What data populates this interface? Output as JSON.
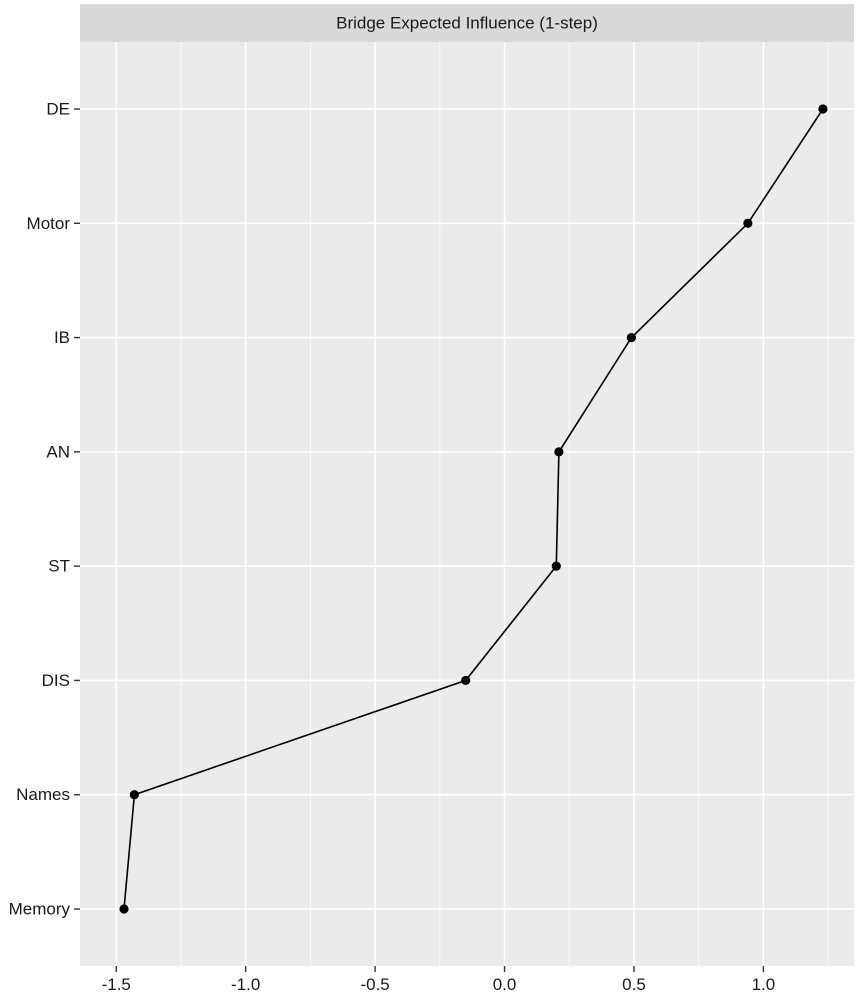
{
  "chart_data": {
    "type": "line",
    "title": "Bridge Expected Influence (1-step)",
    "xlabel": "",
    "ylabel": "",
    "xlim": [
      -1.64,
      1.35
    ],
    "x_ticks": [
      -1.5,
      -1.0,
      -0.5,
      0.0,
      0.5,
      1.0
    ],
    "x_tick_labels": [
      "-1.5",
      "-1.0",
      "-0.5",
      "0.0",
      "0.5",
      "1.0"
    ],
    "categories": [
      "DE",
      "Motor",
      "IB",
      "AN",
      "ST",
      "DIS",
      "Names",
      "Memory"
    ],
    "values": [
      1.23,
      0.94,
      0.49,
      0.21,
      0.2,
      -0.15,
      -1.43,
      -1.47
    ],
    "grid": true,
    "legend": "none",
    "colors": {
      "panel_background": "#EBEBEB",
      "strip_background": "#D9D9D9",
      "grid_major": "#FFFFFF",
      "series": "#000000",
      "tick": "#333333"
    }
  }
}
